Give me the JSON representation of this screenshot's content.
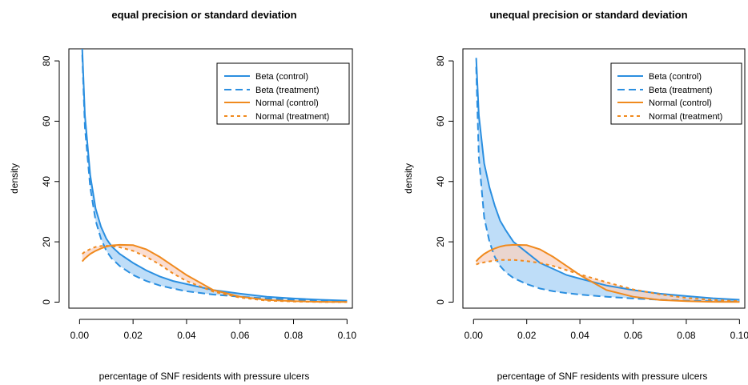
{
  "colors": {
    "beta": "#2b8fe0",
    "beta_fill": "#a8d2f5",
    "normal": "#f08a1e",
    "normal_fill": "#f8d2c2"
  },
  "chart_data": [
    {
      "type": "line",
      "title": "equal precision or standard deviation",
      "xlabel": "percentage of SNF residents with pressure ulcers",
      "ylabel": "density",
      "xlim": [
        -0.004,
        0.102
      ],
      "ylim": [
        -2,
        84
      ],
      "xticks": [
        "0.00",
        "0.02",
        "0.04",
        "0.06",
        "0.08",
        "0.10"
      ],
      "yticks": [
        "0",
        "20",
        "40",
        "60",
        "80"
      ],
      "legend_position": "top-right",
      "x": [
        0.001,
        0.002,
        0.004,
        0.006,
        0.008,
        0.01,
        0.012,
        0.015,
        0.02,
        0.025,
        0.03,
        0.035,
        0.04,
        0.05,
        0.06,
        0.07,
        0.08,
        0.09,
        0.1
      ],
      "series": [
        {
          "name": "Beta (control)",
          "style": "solid",
          "values": [
            84,
            62,
            42,
            31,
            25,
            21,
            18.5,
            16,
            13,
            10.5,
            8.5,
            7,
            6,
            4,
            2.8,
            1.8,
            1.2,
            0.8,
            0.5
          ]
        },
        {
          "name": "Beta (treatment)",
          "style": "dashed",
          "values": [
            82,
            58,
            38,
            27,
            21,
            17,
            14.5,
            12,
            9,
            7,
            5.5,
            4.5,
            3.6,
            2.5,
            1.8,
            1.2,
            0.8,
            0.5,
            0.3
          ]
        },
        {
          "name": "Normal (control)",
          "style": "solid",
          "values": [
            13.5,
            14.5,
            16,
            17,
            17.8,
            18.4,
            18.8,
            19,
            18.9,
            17.5,
            15,
            12,
            9,
            4,
            1.8,
            0.7,
            0.3,
            0.1,
            0.05
          ]
        },
        {
          "name": "Normal (treatment)",
          "style": "dotted",
          "values": [
            16,
            16.7,
            17.6,
            18.3,
            18.6,
            18.7,
            18.6,
            18.2,
            17,
            15,
            12.5,
            9.5,
            7,
            3.5,
            1.5,
            0.5,
            0.2,
            0.05,
            0.02
          ]
        }
      ]
    },
    {
      "type": "line",
      "title": "unequal precision or standard deviation",
      "xlabel": "percentage of SNF residents with pressure ulcers",
      "ylabel": "density",
      "xlim": [
        -0.004,
        0.102
      ],
      "ylim": [
        -2,
        84
      ],
      "xticks": [
        "0.00",
        "0.02",
        "0.04",
        "0.06",
        "0.08",
        "0.10"
      ],
      "yticks": [
        "0",
        "20",
        "40",
        "60",
        "80"
      ],
      "legend_position": "top-right",
      "x": [
        0.001,
        0.002,
        0.004,
        0.006,
        0.008,
        0.01,
        0.012,
        0.015,
        0.02,
        0.025,
        0.03,
        0.035,
        0.04,
        0.05,
        0.06,
        0.07,
        0.08,
        0.09,
        0.1
      ],
      "series": [
        {
          "name": "Beta (control)",
          "style": "solid",
          "values": [
            81,
            62,
            46,
            38,
            32,
            27,
            24,
            20,
            16.5,
            13,
            11,
            9,
            7.8,
            5.5,
            4,
            2.8,
            2,
            1.3,
            0.8
          ]
        },
        {
          "name": "Beta (treatment)",
          "style": "dashed",
          "values": [
            78,
            48,
            28,
            20,
            15,
            12,
            10,
            8,
            6,
            4.5,
            3.6,
            3,
            2.5,
            1.8,
            1.2,
            0.8,
            0.5,
            0.3,
            0.2
          ]
        },
        {
          "name": "Normal (control)",
          "style": "solid",
          "values": [
            13.5,
            14.5,
            16,
            17,
            17.8,
            18.4,
            18.8,
            19,
            18.9,
            17.5,
            15,
            12,
            9,
            4,
            1.8,
            0.7,
            0.3,
            0.1,
            0.05
          ]
        },
        {
          "name": "Normal (treatment)",
          "style": "dotted",
          "values": [
            12.5,
            12.8,
            13.2,
            13.5,
            13.8,
            14,
            14,
            14,
            13.6,
            13,
            12,
            10.6,
            9.2,
            6.6,
            4.2,
            2.6,
            1.4,
            0.7,
            0.3
          ]
        }
      ]
    }
  ]
}
